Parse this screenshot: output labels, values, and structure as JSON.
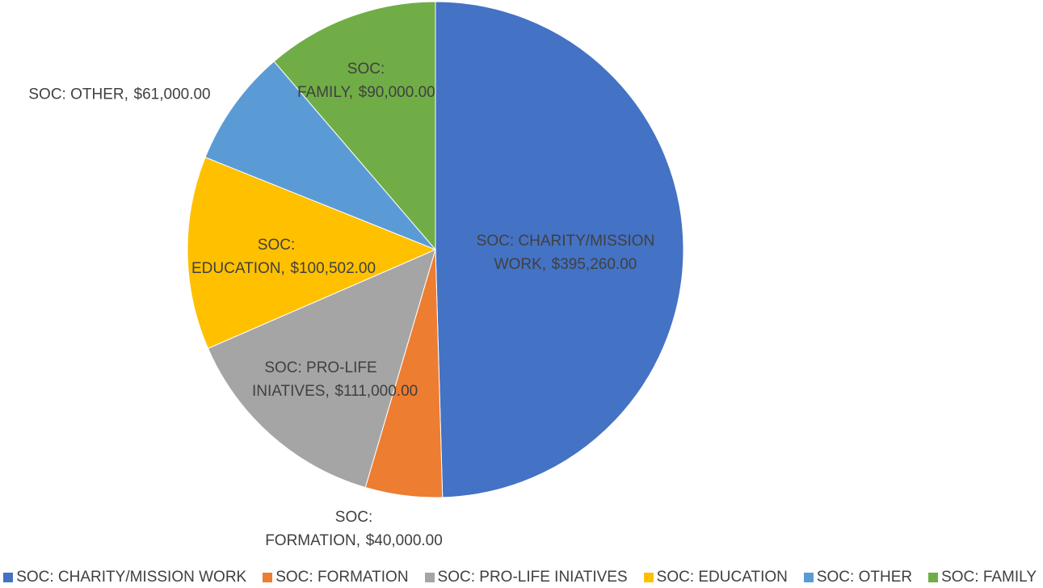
{
  "chart_data": {
    "type": "pie",
    "categories": [
      "SOC: CHARITY/MISSION WORK",
      "SOC: FORMATION",
      "SOC: PRO-LIFE INIATIVES",
      "SOC: EDUCATION",
      "SOC: OTHER",
      "SOC: FAMILY"
    ],
    "values": [
      395260,
      40000,
      111000,
      100502,
      61000,
      90000
    ],
    "value_labels": [
      "$395,260.00",
      "$40,000.00",
      "$111,000.00",
      "$100,502.00",
      "$61,000.00",
      "$90,000.00"
    ],
    "colors": [
      "#4472c4",
      "#ed7d31",
      "#a5a5a5",
      "#ffc000",
      "#5b9bd5",
      "#70ad47"
    ],
    "legend": "bottom"
  }
}
